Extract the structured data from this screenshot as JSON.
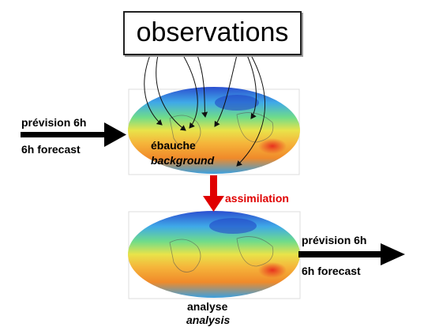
{
  "observations_label": "observations",
  "input_forecast": {
    "fr": "prévision 6h",
    "en": "6h forecast"
  },
  "background": {
    "fr": "ébauche",
    "en": "background"
  },
  "assimilation_label": "assimilation",
  "analysis": {
    "fr": "analyse",
    "en": "analysis"
  },
  "output_forecast": {
    "fr": "prévision 6h",
    "en": "6h forecast"
  },
  "colors": {
    "arrow": "#000000",
    "assimilation_arrow": "#e00000",
    "ocean_cold": "#2b6fd6",
    "land_warm": "#f5a623"
  }
}
